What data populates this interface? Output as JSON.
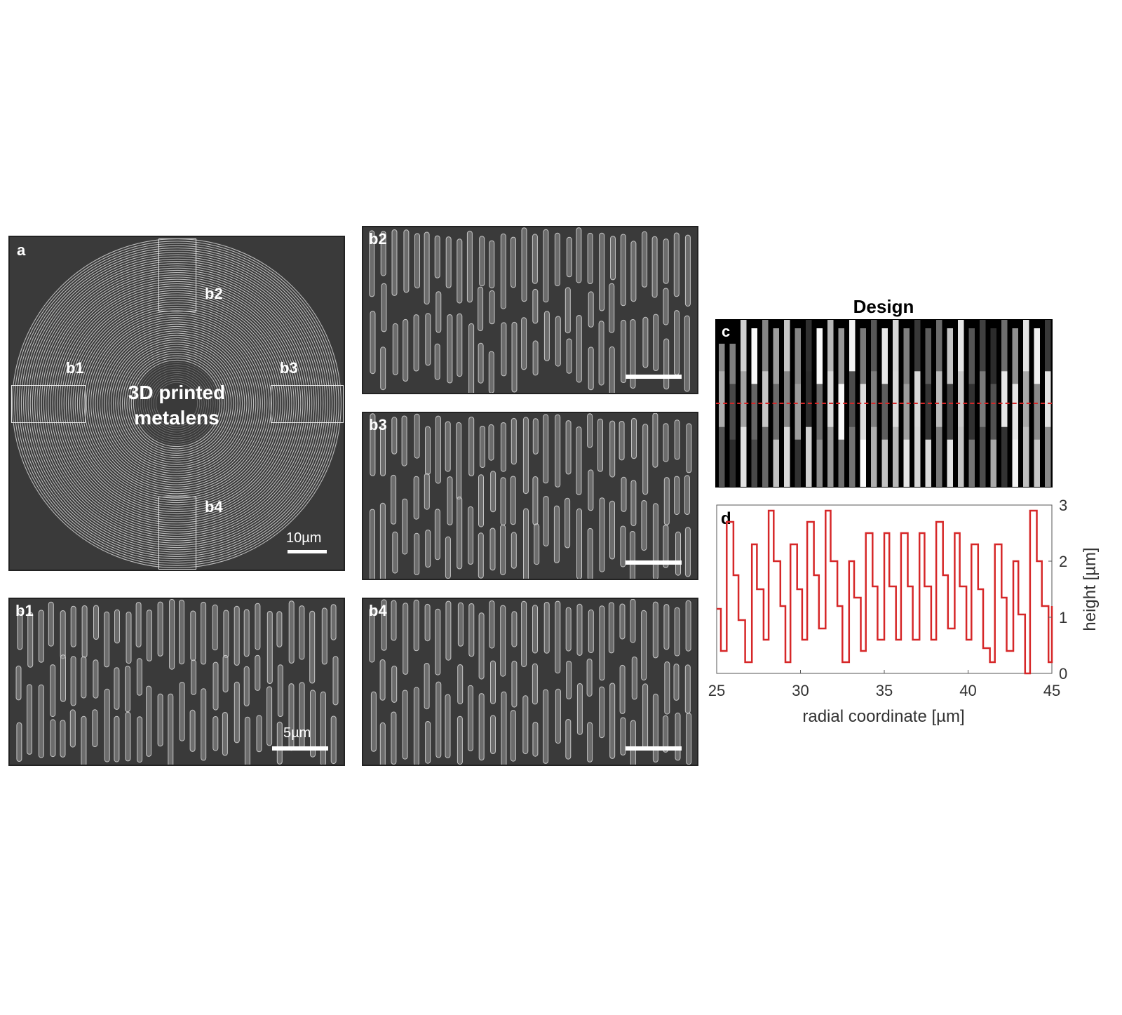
{
  "panel_a": {
    "label": "a",
    "title_line1": "3D printed",
    "title_line2": "metalens",
    "roi_labels": [
      "b1",
      "b2",
      "b3",
      "b4"
    ],
    "scale_bar_text": "10µm"
  },
  "panels_b": {
    "b1": {
      "label": "b1",
      "scale_bar_text": "5µm"
    },
    "b2": {
      "label": "b2"
    },
    "b3": {
      "label": "b3"
    },
    "b4": {
      "label": "b4"
    }
  },
  "panel_c": {
    "label": "c",
    "title": "Design"
  },
  "chart_data": {
    "type": "line",
    "panel_label": "d",
    "xlabel": "radial coordinate [µm]",
    "ylabel": "height [µm]",
    "xlim": [
      25,
      45
    ],
    "ylim": [
      0,
      3
    ],
    "xticks": [
      25,
      30,
      35,
      40,
      45
    ],
    "yticks": [
      0,
      1,
      2,
      3
    ],
    "y_axis_side": "right",
    "series": [
      {
        "color": "#d62728",
        "x": [
          25,
          25.25,
          25.6,
          26,
          26.3,
          26.7,
          27.1,
          27.4,
          27.8,
          28.1,
          28.4,
          28.8,
          29.1,
          29.4,
          29.8,
          30.1,
          30.4,
          30.8,
          31.1,
          31.5,
          31.8,
          32.2,
          32.5,
          32.9,
          33.2,
          33.6,
          33.9,
          34.3,
          34.6,
          35,
          35.3,
          35.7,
          36,
          36.4,
          36.7,
          37.1,
          37.4,
          37.8,
          38.1,
          38.5,
          38.8,
          39.2,
          39.5,
          39.9,
          40.2,
          40.6,
          40.9,
          41.3,
          41.6,
          42,
          42.3,
          42.7,
          43,
          43.4,
          43.7,
          44.1,
          44.4,
          44.8,
          45
        ],
        "y": [
          1.15,
          0.4,
          2.7,
          1.75,
          0.95,
          0.2,
          2.3,
          1.5,
          0.6,
          2.9,
          2.0,
          1.2,
          0.2,
          2.3,
          1.5,
          0.6,
          2.7,
          1.75,
          0.8,
          2.9,
          2.0,
          1.2,
          0.2,
          2.0,
          1.35,
          0.4,
          2.5,
          1.55,
          0.6,
          2.5,
          1.55,
          0.6,
          2.5,
          1.55,
          0.6,
          2.5,
          1.55,
          0.6,
          2.7,
          1.75,
          0.8,
          2.5,
          1.55,
          0.6,
          2.3,
          1.5,
          0.45,
          0.2,
          2.3,
          1.35,
          0.4,
          2.0,
          1.05,
          0.0,
          2.9,
          2.0,
          1.2,
          0.2,
          1.2
        ]
      }
    ]
  }
}
